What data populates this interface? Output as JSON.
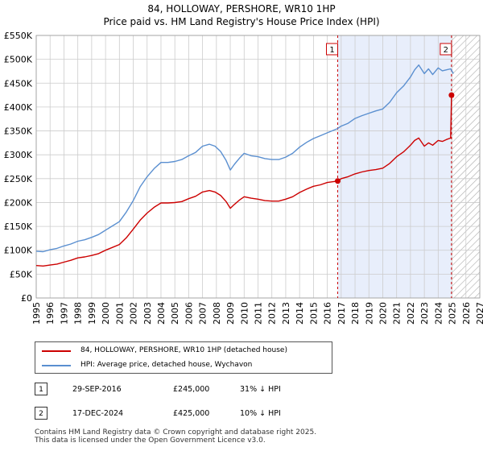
{
  "title_line1": "84, HOLLOWAY, PERSHORE, WR10 1HP",
  "title_line2": "Price paid vs. HM Land Registry's House Price Index (HPI)",
  "colors": {
    "property": "#cc0000",
    "hpi": "#5a8fd0",
    "shade": "#e8eefb",
    "grid": "#cccccc",
    "hatch": "#aaaaaa"
  },
  "legend": {
    "property": "84, HOLLOWAY, PERSHORE, WR10 1HP (detached house)",
    "hpi": "HPI: Average price, detached house, Wychavon"
  },
  "sales": [
    {
      "num": "1",
      "date": "29-SEP-2016",
      "price": "£245,000",
      "hpi_diff": "31% ↓ HPI"
    },
    {
      "num": "2",
      "date": "17-DEC-2024",
      "price": "£425,000",
      "hpi_diff": "10% ↓ HPI"
    }
  ],
  "footer_line1": "Contains HM Land Registry data © Crown copyright and database right 2025.",
  "footer_line2": "This data is licensed under the Open Government Licence v3.0.",
  "chart_data": {
    "type": "line",
    "title": "Price paid vs. HM Land Registry's House Price Index (HPI)",
    "xlim": [
      1995,
      2027
    ],
    "ylim": [
      0,
      550000
    ],
    "x_ticks": [
      1995,
      1996,
      1997,
      1998,
      1999,
      2000,
      2001,
      2002,
      2003,
      2004,
      2005,
      2006,
      2007,
      2008,
      2009,
      2010,
      2011,
      2012,
      2013,
      2014,
      2015,
      2016,
      2017,
      2018,
      2019,
      2020,
      2021,
      2022,
      2023,
      2024,
      2025,
      2026,
      2027
    ],
    "y_ticks": [
      0,
      50000,
      100000,
      150000,
      200000,
      250000,
      300000,
      350000,
      400000,
      450000,
      500000,
      550000
    ],
    "y_tick_labels": [
      "£0",
      "£50K",
      "£100K",
      "£150K",
      "£200K",
      "£250K",
      "£300K",
      "£350K",
      "£400K",
      "£450K",
      "£500K",
      "£550K"
    ],
    "grid": true,
    "sale_markers": [
      {
        "label": "1",
        "x": 2016.75,
        "y": 245000
      },
      {
        "label": "2",
        "x": 2024.96,
        "y": 425000
      }
    ],
    "shaded_range": [
      2016.75,
      2024.96
    ],
    "hatched_from": 2024.96,
    "series": [
      {
        "name": "84, HOLLOWAY, PERSHORE, WR10 1HP (detached house)",
        "x": [
          1995,
          1995.5,
          1996,
          1996.5,
          1997,
          1997.5,
          1998,
          1998.5,
          1999,
          1999.5,
          2000,
          2000.5,
          2001,
          2001.5,
          2002,
          2002.5,
          2003,
          2003.5,
          2004,
          2004.5,
          2005,
          2005.5,
          2006,
          2006.5,
          2007,
          2007.5,
          2007.9,
          2008.3,
          2008.7,
          2009.0,
          2009.3,
          2009.7,
          2010,
          2010.5,
          2011,
          2011.5,
          2012,
          2012.5,
          2013,
          2013.5,
          2014,
          2014.5,
          2015,
          2015.5,
          2016,
          2016.75,
          2017,
          2017.5,
          2018,
          2018.5,
          2019,
          2019.5,
          2020,
          2020.5,
          2021,
          2021.5,
          2022,
          2022.3,
          2022.6,
          2023,
          2023.3,
          2023.6,
          2024,
          2024.3,
          2024.6,
          2024.9,
          2024.96,
          2025.1
        ],
        "values": [
          68000,
          67000,
          69000,
          71000,
          75000,
          79000,
          84000,
          86000,
          89000,
          93000,
          100000,
          106000,
          112000,
          126000,
          144000,
          163000,
          178000,
          190000,
          199000,
          199000,
          200000,
          202000,
          208000,
          213000,
          222000,
          225000,
          222000,
          215000,
          202000,
          188000,
          196000,
          206000,
          212000,
          209000,
          207000,
          204000,
          203000,
          203000,
          207000,
          212000,
          221000,
          228000,
          234000,
          237000,
          242000,
          245000,
          250000,
          254000,
          260000,
          264000,
          267000,
          269000,
          272000,
          282000,
          296000,
          306000,
          320000,
          330000,
          335000,
          318000,
          325000,
          320000,
          330000,
          328000,
          332000,
          335000,
          425000,
          420000
        ]
      },
      {
        "name": "HPI: Average price, detached house, Wychavon",
        "x": [
          1995,
          1995.5,
          1996,
          1996.5,
          1997,
          1997.5,
          1998,
          1998.5,
          1999,
          1999.5,
          2000,
          2000.5,
          2001,
          2001.5,
          2002,
          2002.5,
          2003,
          2003.5,
          2004,
          2004.5,
          2005,
          2005.5,
          2006,
          2006.5,
          2007,
          2007.5,
          2007.9,
          2008.3,
          2008.7,
          2009.0,
          2009.3,
          2009.7,
          2010,
          2010.5,
          2011,
          2011.5,
          2012,
          2012.5,
          2013,
          2013.5,
          2014,
          2014.5,
          2015,
          2015.5,
          2016,
          2016.75,
          2017,
          2017.5,
          2018,
          2018.5,
          2019,
          2019.5,
          2020,
          2020.5,
          2021,
          2021.5,
          2022,
          2022.3,
          2022.6,
          2023,
          2023.3,
          2023.6,
          2024,
          2024.3,
          2024.6,
          2024.9,
          2025.1
        ],
        "values": [
          98000,
          97000,
          101000,
          104000,
          109000,
          113000,
          119000,
          122000,
          127000,
          133000,
          142000,
          151000,
          160000,
          180000,
          204000,
          233000,
          254000,
          271000,
          284000,
          284000,
          286000,
          290000,
          298000,
          305000,
          318000,
          322000,
          318000,
          307000,
          288000,
          268000,
          280000,
          294000,
          303000,
          298000,
          296000,
          292000,
          290000,
          290000,
          295000,
          303000,
          316000,
          326000,
          334000,
          340000,
          346000,
          355000,
          360000,
          366000,
          376000,
          382000,
          387000,
          392000,
          396000,
          410000,
          430000,
          444000,
          463000,
          478000,
          488000,
          470000,
          480000,
          468000,
          482000,
          476000,
          478000,
          480000,
          470000
        ]
      }
    ]
  }
}
